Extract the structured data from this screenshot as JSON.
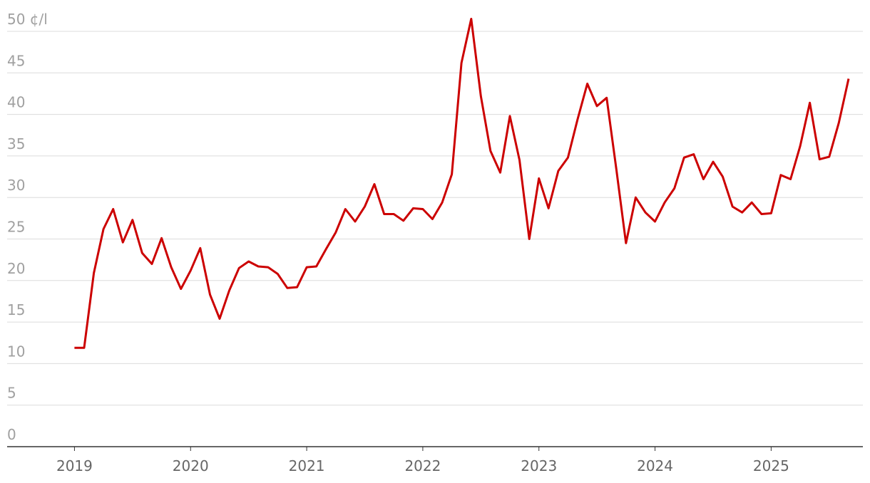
{
  "chart_data": {
    "type": "line",
    "x": [
      2019,
      2019.083,
      2019.167,
      2019.25,
      2019.333,
      2019.417,
      2019.5,
      2019.583,
      2019.667,
      2019.75,
      2019.833,
      2019.917,
      2020,
      2020.083,
      2020.167,
      2020.25,
      2020.333,
      2020.417,
      2020.5,
      2020.583,
      2020.667,
      2020.75,
      2020.833,
      2020.917,
      2021,
      2021.083,
      2021.167,
      2021.25,
      2021.333,
      2021.417,
      2021.5,
      2021.583,
      2021.667,
      2021.75,
      2021.833,
      2021.917,
      2022,
      2022.083,
      2022.167,
      2022.25,
      2022.333,
      2022.417,
      2022.5,
      2022.583,
      2022.667,
      2022.75,
      2022.833,
      2022.917,
      2023,
      2023.083,
      2023.167,
      2023.25,
      2023.333,
      2023.417,
      2023.5,
      2023.583,
      2023.667,
      2023.75,
      2023.833,
      2023.917,
      2024,
      2024.083,
      2024.167,
      2024.25,
      2024.333,
      2024.417,
      2024.5,
      2024.583,
      2024.667,
      2024.75,
      2024.833,
      2024.917,
      2025,
      2025.083,
      2025.167,
      2025.25,
      2025.333,
      2025.417,
      2025.5,
      2025.583,
      2025.667
    ],
    "series": [
      {
        "color": "#cc0000",
        "values": [
          11.9,
          11.9,
          20.9,
          26.2,
          28.6,
          24.6,
          27.3,
          23.3,
          22.0,
          25.1,
          21.6,
          19.0,
          21.2,
          23.9,
          18.3,
          15.4,
          18.8,
          21.5,
          22.3,
          21.7,
          21.6,
          20.8,
          19.1,
          19.2,
          21.6,
          21.7,
          23.8,
          25.8,
          28.6,
          27.1,
          28.9,
          31.6,
          28.0,
          28.0,
          27.2,
          28.7,
          28.6,
          27.4,
          29.4,
          32.8,
          46.2,
          51.5,
          42.2,
          35.6,
          33.0,
          39.8,
          34.5,
          25.0,
          32.3,
          28.7,
          33.2,
          34.8,
          39.4,
          43.7,
          41.0,
          42.0,
          33.4,
          24.5,
          30.0,
          28.2,
          27.1,
          29.4,
          31.1,
          34.8,
          35.2,
          32.2,
          34.3,
          32.5,
          28.9,
          28.2,
          29.4,
          28.0,
          28.1,
          32.7,
          32.2,
          36.2,
          41.4,
          34.6,
          34.9,
          39.0,
          44.3
        ]
      }
    ],
    "xlim": [
      2018.42,
      2025.79
    ],
    "xticks": [
      2019,
      2020,
      2021,
      2022,
      2023,
      2024,
      2025
    ],
    "ylim": [
      0,
      50
    ],
    "yticks": [
      0,
      5,
      10,
      15,
      20,
      25,
      30,
      35,
      40,
      45,
      {
        "value": 50,
        "label": "50 ¢/l"
      }
    ],
    "grid": true
  }
}
